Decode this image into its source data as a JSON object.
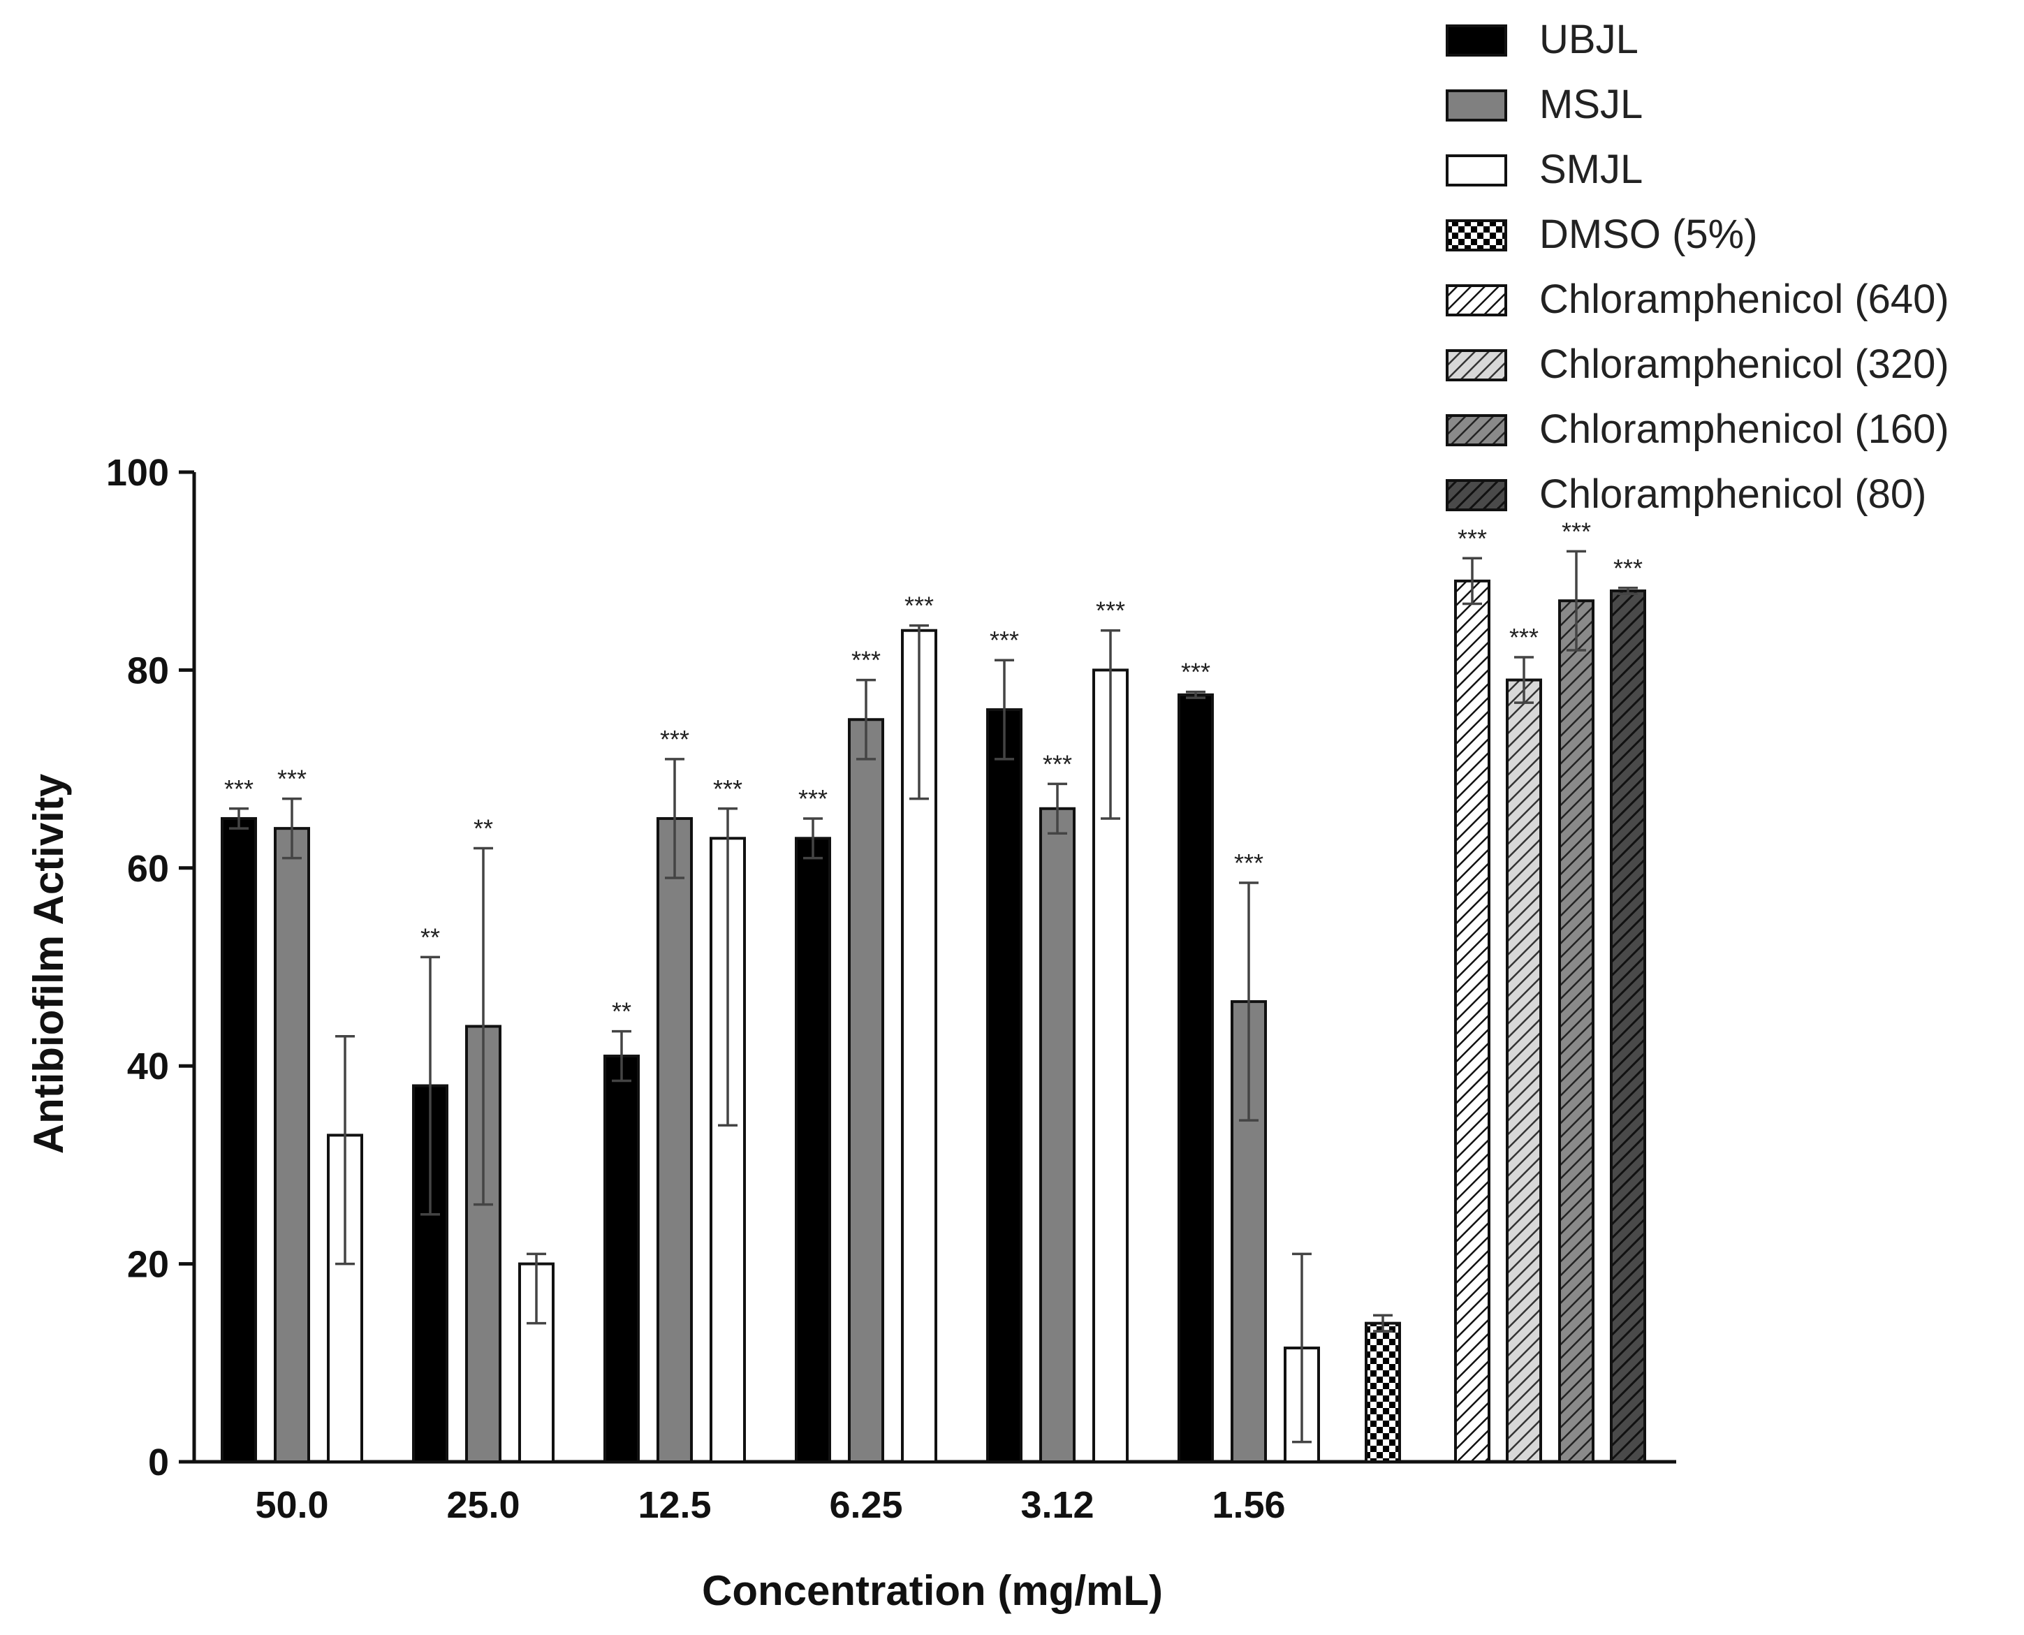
{
  "chart_data": {
    "type": "bar",
    "title": "",
    "xlabel": "Concentration (mg/mL)",
    "ylabel": "Antibiofilm Activity",
    "ylim": [
      0,
      100
    ],
    "yticks": [
      0,
      20,
      40,
      60,
      80,
      100
    ],
    "grid": false,
    "legend_position": "top-right",
    "categories": [
      "50.0",
      "25.0",
      "12.5",
      "6.25",
      "3.12",
      "1.56"
    ],
    "series": [
      {
        "name": "UBJL",
        "pattern": "solid-black",
        "values": [
          65,
          38,
          41,
          63,
          76,
          77.5
        ],
        "errors": [
          1,
          13,
          2.5,
          2,
          5,
          0.3
        ],
        "significance": [
          "***",
          "**",
          "**",
          "***",
          "***",
          "***"
        ]
      },
      {
        "name": "MSJL",
        "pattern": "solid-gray",
        "values": [
          64,
          44,
          65,
          75,
          66,
          46.5
        ],
        "errors": [
          3,
          18,
          6,
          4,
          2.5,
          12
        ],
        "significance": [
          "***",
          "**",
          "***",
          "***",
          "***",
          "***"
        ]
      },
      {
        "name": "SMJL",
        "pattern": "white",
        "values": [
          33,
          20,
          63,
          84,
          80,
          11.5
        ],
        "errors": [
          10,
          1,
          3,
          0.5,
          4,
          9.5
        ],
        "error_lows": [
          13,
          6,
          29,
          17,
          15,
          9.5
        ],
        "significance": [
          "",
          "",
          "***",
          "***",
          "***",
          ""
        ]
      }
    ],
    "controls": [
      {
        "name": "DMSO (5%)",
        "pattern": "checker",
        "value": 14,
        "error": 0.8,
        "significance": ""
      },
      {
        "name": "Chloramphenicol (640)",
        "pattern": "hatch-white",
        "value": 89,
        "error": 2.3,
        "significance": "***"
      },
      {
        "name": "Chloramphenicol (320)",
        "pattern": "hatch-light",
        "value": 79,
        "error": 2.3,
        "significance": "***"
      },
      {
        "name": "Chloramphenicol (160)",
        "pattern": "hatch-mid",
        "value": 87,
        "error": 5,
        "significance": "***"
      },
      {
        "name": "Chloramphenicol (80)",
        "pattern": "hatch-dark",
        "value": 88,
        "error": 0.3,
        "significance": "***"
      }
    ],
    "colors": {
      "axis": "#111111",
      "ubjl": "#000000",
      "msjl": "#808080",
      "smjl": "#ffffff"
    }
  }
}
